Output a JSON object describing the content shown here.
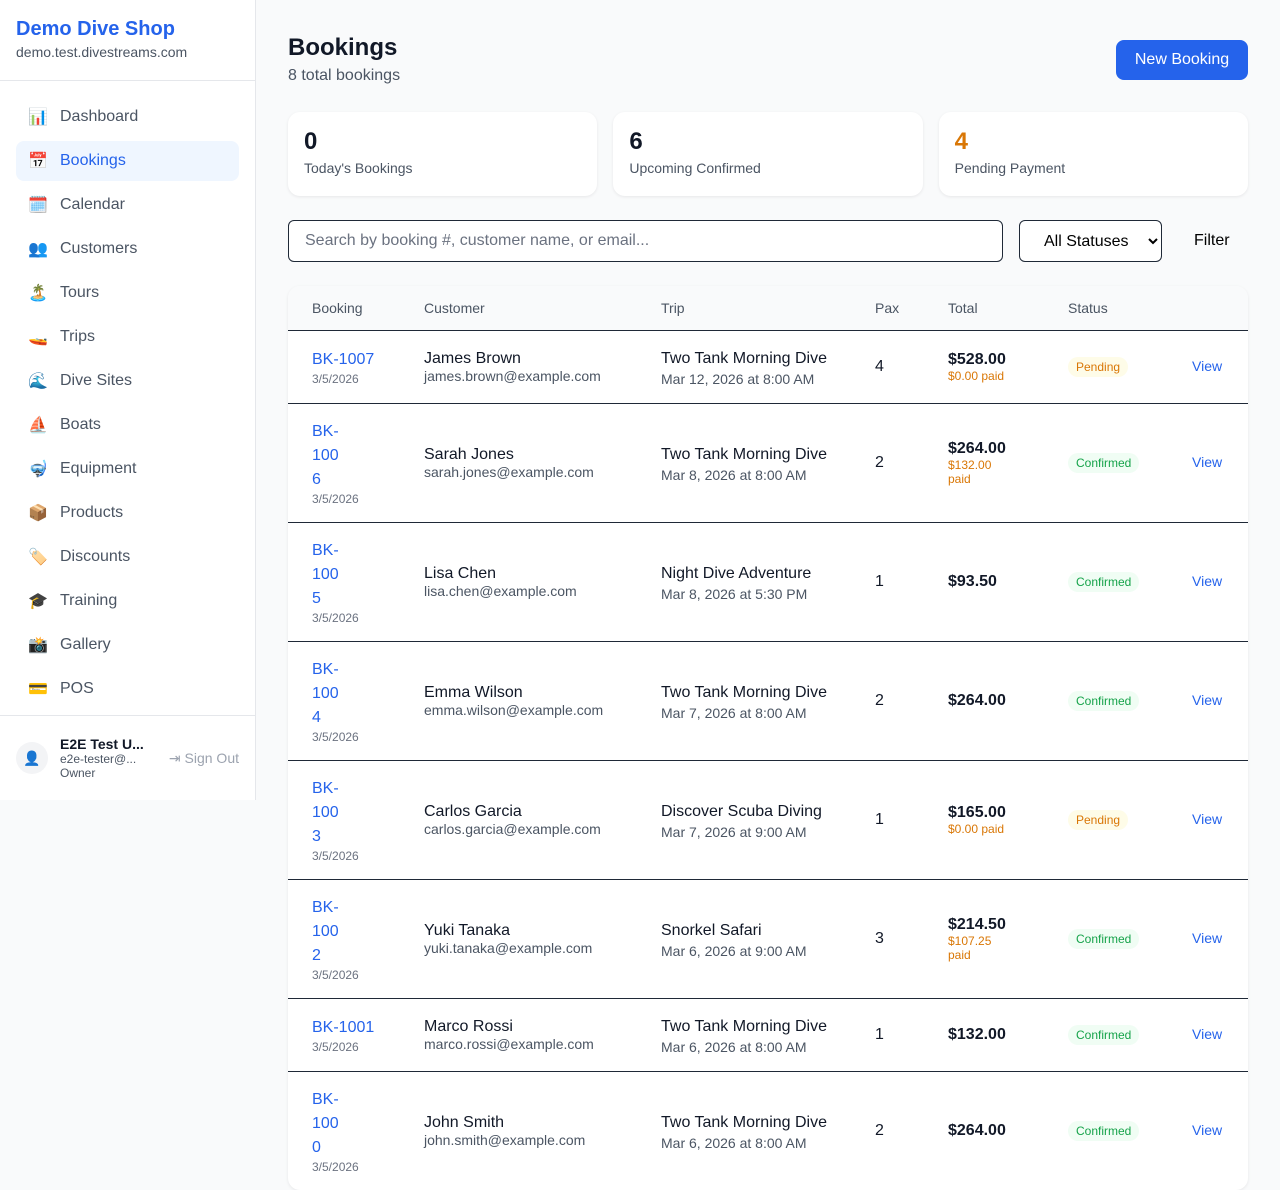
{
  "sidebar": {
    "shop_name": "Demo Dive Shop",
    "domain": "demo.test.divestreams.com",
    "items": [
      {
        "label": "Dashboard",
        "icon": "📊"
      },
      {
        "label": "Bookings",
        "icon": "📅",
        "active": true
      },
      {
        "label": "Calendar",
        "icon": "🗓️"
      },
      {
        "label": "Customers",
        "icon": "👥"
      },
      {
        "label": "Tours",
        "icon": "🏝️"
      },
      {
        "label": "Trips",
        "icon": "🚤"
      },
      {
        "label": "Dive Sites",
        "icon": "🌊"
      },
      {
        "label": "Boats",
        "icon": "⛵"
      },
      {
        "label": "Equipment",
        "icon": "🤿"
      },
      {
        "label": "Products",
        "icon": "📦"
      },
      {
        "label": "Discounts",
        "icon": "🏷️"
      },
      {
        "label": "Training",
        "icon": "🎓"
      },
      {
        "label": "Gallery",
        "icon": "📸"
      },
      {
        "label": "POS",
        "icon": "💳"
      }
    ],
    "user": {
      "name": "E2E Test U...",
      "email": "e2e-tester@...",
      "role": "Owner",
      "sign_out": "Sign Out"
    }
  },
  "header": {
    "title": "Bookings",
    "subtitle": "8 total bookings",
    "new_button": "New Booking"
  },
  "stats": [
    {
      "value": "0",
      "label": "Today's Bookings",
      "color": "#111827"
    },
    {
      "value": "6",
      "label": "Upcoming Confirmed",
      "color": "#111827"
    },
    {
      "value": "4",
      "label": "Pending Payment",
      "color": "#d97706"
    }
  ],
  "filters": {
    "search_placeholder": "Search by booking #, customer name, or email...",
    "status_selected": "All Statuses",
    "filter_button": "Filter"
  },
  "table": {
    "columns": [
      "Booking",
      "Customer",
      "Trip",
      "Pax",
      "Total",
      "Status",
      ""
    ],
    "view_label": "View",
    "rows": [
      {
        "id": "BK-1007",
        "date": "3/5/2026",
        "name": "James Brown",
        "email": "james.brown@example.com",
        "trip": "Two Tank Morning Dive",
        "trip_date": "Mar 12, 2026 at 8:00 AM",
        "pax": "4",
        "total": "$528.00",
        "paid": "$0.00 paid",
        "status": "Pending"
      },
      {
        "id": "BK-1006",
        "date": "3/5/2026",
        "name": "Sarah Jones",
        "email": "sarah.jones@example.com",
        "trip": "Two Tank Morning Dive",
        "trip_date": "Mar 8, 2026 at 8:00 AM",
        "pax": "2",
        "total": "$264.00",
        "paid": "$132.00 paid",
        "status": "Confirmed"
      },
      {
        "id": "BK-1005",
        "date": "3/5/2026",
        "name": "Lisa Chen",
        "email": "lisa.chen@example.com",
        "trip": "Night Dive Adventure",
        "trip_date": "Mar 8, 2026 at 5:30 PM",
        "pax": "1",
        "total": "$93.50",
        "paid": "",
        "status": "Confirmed"
      },
      {
        "id": "BK-1004",
        "date": "3/5/2026",
        "name": "Emma Wilson",
        "email": "emma.wilson@example.com",
        "trip": "Two Tank Morning Dive",
        "trip_date": "Mar 7, 2026 at 8:00 AM",
        "pax": "2",
        "total": "$264.00",
        "paid": "",
        "status": "Confirmed"
      },
      {
        "id": "BK-1003",
        "date": "3/5/2026",
        "name": "Carlos Garcia",
        "email": "carlos.garcia@example.com",
        "trip": "Discover Scuba Diving",
        "trip_date": "Mar 7, 2026 at 9:00 AM",
        "pax": "1",
        "total": "$165.00",
        "paid": "$0.00 paid",
        "status": "Pending"
      },
      {
        "id": "BK-1002",
        "date": "3/5/2026",
        "name": "Yuki Tanaka",
        "email": "yuki.tanaka@example.com",
        "trip": "Snorkel Safari",
        "trip_date": "Mar 6, 2026 at 9:00 AM",
        "pax": "3",
        "total": "$214.50",
        "paid": "$107.25 paid",
        "status": "Confirmed"
      },
      {
        "id": "BK-1001",
        "date": "3/5/2026",
        "name": "Marco Rossi",
        "email": "marco.rossi@example.com",
        "trip": "Two Tank Morning Dive",
        "trip_date": "Mar 6, 2026 at 8:00 AM",
        "pax": "1",
        "total": "$132.00",
        "paid": "",
        "status": "Confirmed"
      },
      {
        "id": "BK-1000",
        "date": "3/5/2026",
        "name": "John Smith",
        "email": "john.smith@example.com",
        "trip": "Two Tank Morning Dive",
        "trip_date": "Mar 6, 2026 at 8:00 AM",
        "pax": "2",
        "total": "$264.00",
        "paid": "",
        "status": "Confirmed"
      }
    ]
  }
}
